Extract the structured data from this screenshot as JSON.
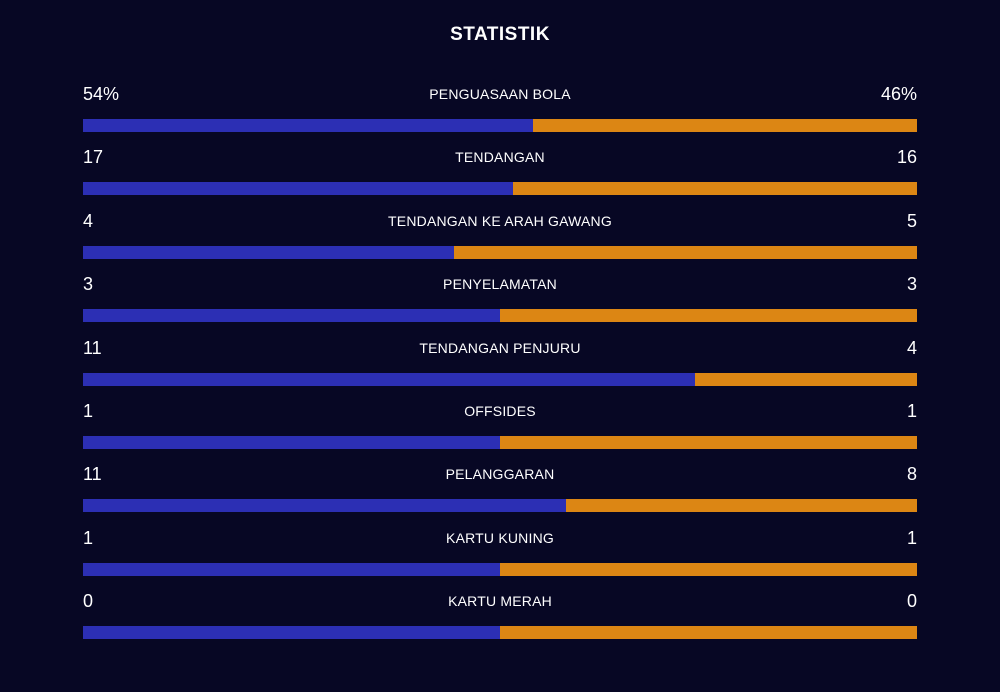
{
  "title": "STATISTIK",
  "colors": {
    "background": "#070724",
    "home": "#2c2fb4",
    "away": "#dc8614"
  },
  "stats": [
    {
      "label": "PENGUASAAN BOLA",
      "home": "54%",
      "away": "46%",
      "home_value": 54,
      "away_value": 46
    },
    {
      "label": "TENDANGAN",
      "home": "17",
      "away": "16",
      "home_value": 17,
      "away_value": 16
    },
    {
      "label": "TENDANGAN KE ARAH GAWANG",
      "home": "4",
      "away": "5",
      "home_value": 4,
      "away_value": 5
    },
    {
      "label": "PENYELAMATAN",
      "home": "3",
      "away": "3",
      "home_value": 3,
      "away_value": 3
    },
    {
      "label": "TENDANGAN PENJURU",
      "home": "11",
      "away": "4",
      "home_value": 11,
      "away_value": 4
    },
    {
      "label": "OFFSIDES",
      "home": "1",
      "away": "1",
      "home_value": 1,
      "away_value": 1
    },
    {
      "label": "PELANGGARAN",
      "home": "11",
      "away": "8",
      "home_value": 11,
      "away_value": 8
    },
    {
      "label": "KARTU KUNING",
      "home": "1",
      "away": "1",
      "home_value": 1,
      "away_value": 1
    },
    {
      "label": "KARTU MERAH",
      "home": "0",
      "away": "0",
      "home_value": 0,
      "away_value": 0
    }
  ]
}
